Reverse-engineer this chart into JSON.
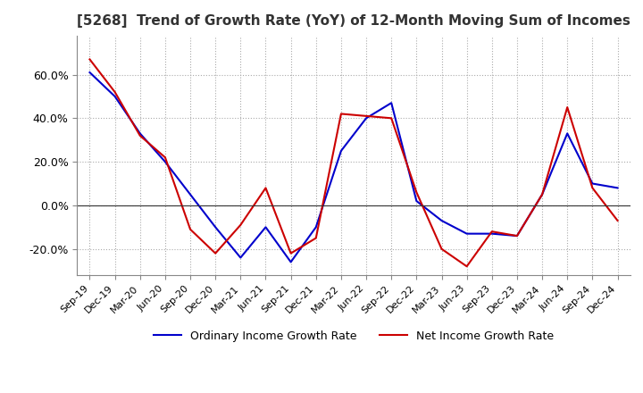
{
  "title": "[5268]  Trend of Growth Rate (YoY) of 12-Month Moving Sum of Incomes",
  "title_fontsize": 11,
  "ylim": [
    -0.32,
    0.78
  ],
  "yticks": [
    -0.2,
    0.0,
    0.2,
    0.4,
    0.6
  ],
  "background_color": "#ffffff",
  "grid_color": "#aaaaaa",
  "ordinary_color": "#0000cc",
  "net_color": "#cc0000",
  "legend_ordinary": "Ordinary Income Growth Rate",
  "legend_net": "Net Income Growth Rate",
  "x_labels": [
    "Sep-19",
    "Dec-19",
    "Mar-20",
    "Jun-20",
    "Sep-20",
    "Dec-20",
    "Mar-21",
    "Jun-21",
    "Sep-21",
    "Dec-21",
    "Mar-22",
    "Jun-22",
    "Sep-22",
    "Dec-22",
    "Mar-23",
    "Jun-23",
    "Sep-23",
    "Dec-23",
    "Mar-24",
    "Jun-24",
    "Sep-24",
    "Dec-24"
  ],
  "ordinary": [
    0.61,
    0.5,
    0.33,
    0.2,
    0.05,
    -0.1,
    -0.24,
    -0.1,
    -0.26,
    -0.1,
    0.25,
    0.4,
    0.47,
    0.02,
    -0.07,
    -0.13,
    -0.13,
    -0.14,
    0.05,
    0.33,
    0.1,
    0.08
  ],
  "net": [
    0.67,
    0.52,
    0.32,
    0.22,
    -0.11,
    -0.22,
    -0.09,
    0.08,
    -0.22,
    -0.15,
    0.42,
    0.41,
    0.4,
    0.06,
    -0.2,
    -0.28,
    -0.12,
    -0.14,
    0.05,
    0.45,
    0.08,
    -0.07
  ]
}
